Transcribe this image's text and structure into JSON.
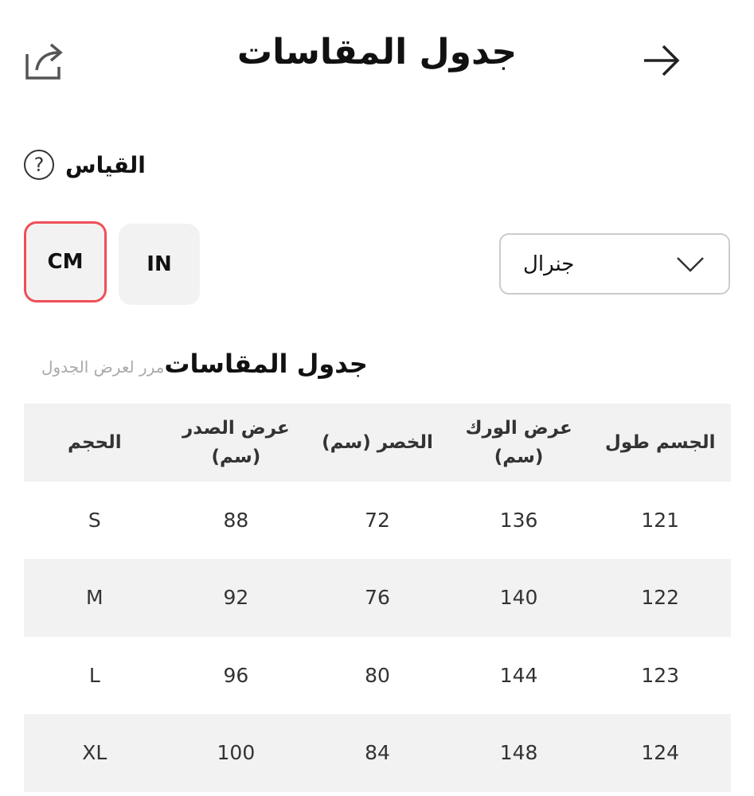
{
  "header": {
    "title": "جدول المقاسات",
    "back_icon": "arrow-right-icon",
    "share_icon": "share-icon"
  },
  "measure": {
    "label": "القياس",
    "help_icon": "question-circle-icon"
  },
  "units": {
    "cm": "CM",
    "in": "IN",
    "selected": "CM",
    "accent": "#ef4f58"
  },
  "dropdown": {
    "value": "جنرال"
  },
  "section": {
    "title": "جدول المقاسات",
    "hint": "مرر لعرض الجدول"
  },
  "table": {
    "headers": [
      "الحجم",
      "عرض الصدر (سم)",
      "الخصر (سم)",
      "عرض الورك (سم)",
      "الجسم طول"
    ],
    "rows": [
      [
        "S",
        "88",
        "72",
        "136",
        "121"
      ],
      [
        "M",
        "92",
        "76",
        "140",
        "122"
      ],
      [
        "L",
        "96",
        "80",
        "144",
        "123"
      ],
      [
        "XL",
        "100",
        "84",
        "148",
        "124"
      ]
    ]
  }
}
